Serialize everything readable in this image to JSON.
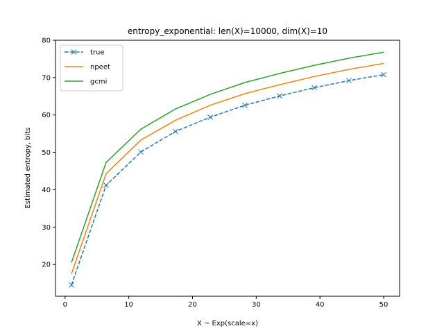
{
  "chart_data": {
    "type": "line",
    "title": "entropy_exponential: len(X)=10000, dim(X)=10",
    "xlabel": "X ~ Exp(scale=x)",
    "ylabel": "Estimated entropy, bits",
    "xlim": [
      -1.5,
      52.5
    ],
    "ylim": [
      11.5,
      80
    ],
    "xticks": [
      0,
      10,
      20,
      30,
      40,
      50
    ],
    "yticks": [
      20,
      30,
      40,
      50,
      60,
      70,
      80
    ],
    "grid": false,
    "legend_position": "top-left",
    "x": [
      1.0,
      6.44,
      11.89,
      17.33,
      22.78,
      28.22,
      33.67,
      39.11,
      44.56,
      50.0
    ],
    "series": [
      {
        "name": "true",
        "color": "#1f77b4",
        "linestyle": "dashed",
        "marker": "x",
        "values": [
          14.5,
          41.2,
          50.1,
          55.6,
          59.4,
          62.6,
          65.1,
          67.3,
          69.2,
          70.8
        ]
      },
      {
        "name": "npeet",
        "color": "#ff7f0e",
        "linestyle": "solid",
        "marker": "none",
        "values": [
          17.5,
          44.3,
          53.3,
          58.6,
          62.6,
          65.7,
          68.1,
          70.3,
          72.2,
          73.8
        ]
      },
      {
        "name": "gcmi",
        "color": "#2ca02c",
        "linestyle": "solid",
        "marker": "none",
        "values": [
          20.5,
          47.3,
          56.2,
          61.6,
          65.5,
          68.7,
          71.1,
          73.3,
          75.2,
          76.8
        ]
      }
    ]
  }
}
